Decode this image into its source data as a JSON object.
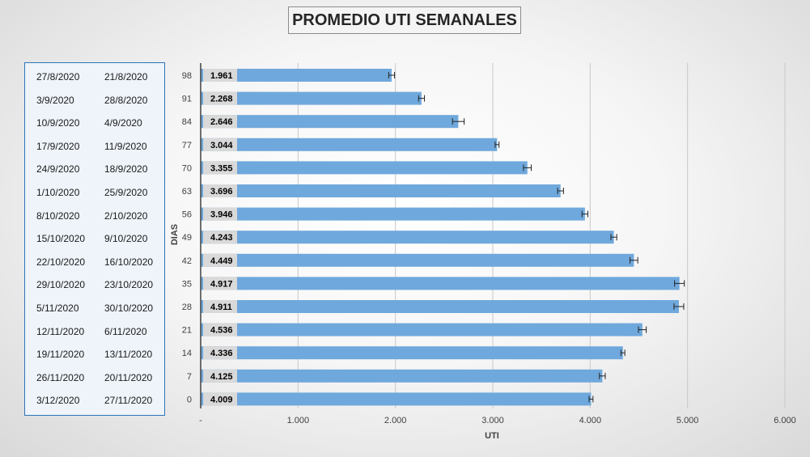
{
  "chart_data": {
    "type": "bar",
    "orientation": "horizontal",
    "title": "PROMEDIO UTI SEMANALES",
    "xlabel": "UTI",
    "ylabel": "DIAS",
    "categories": [
      "98",
      "91",
      "84",
      "77",
      "70",
      "63",
      "56",
      "49",
      "42",
      "35",
      "28",
      "21",
      "14",
      "7",
      "0"
    ],
    "values": [
      1961,
      2268,
      2646,
      3044,
      3355,
      3696,
      3946,
      4243,
      4449,
      4917,
      4911,
      4536,
      4336,
      4125,
      4009
    ],
    "value_labels": [
      "1.961",
      "2.268",
      "2.646",
      "3.044",
      "3.355",
      "3.696",
      "3.946",
      "4.243",
      "4.449",
      "4.917",
      "4.911",
      "4.536",
      "4.336",
      "4.125",
      "4.009"
    ],
    "error": [
      30,
      30,
      60,
      20,
      40,
      30,
      30,
      30,
      40,
      50,
      50,
      40,
      20,
      30,
      20
    ],
    "xlim": [
      0,
      6000
    ],
    "xticks": [
      0,
      1000,
      2000,
      3000,
      4000,
      5000,
      6000
    ],
    "xtick_labels": [
      "-",
      "1.000",
      "2.000",
      "3.000",
      "4.000",
      "5.000",
      "6.000"
    ],
    "grid": "vertical",
    "bar_color": "#6fa8dc",
    "label_bg_color": "#d9d9d9",
    "date_ranges": [
      [
        "27/8/2020",
        "21/8/2020"
      ],
      [
        "3/9/2020",
        "28/8/2020"
      ],
      [
        "10/9/2020",
        "4/9/2020"
      ],
      [
        "17/9/2020",
        "11/9/2020"
      ],
      [
        "24/9/2020",
        "18/9/2020"
      ],
      [
        "1/10/2020",
        "25/9/2020"
      ],
      [
        "8/10/2020",
        "2/10/2020"
      ],
      [
        "15/10/2020",
        "9/10/2020"
      ],
      [
        "22/10/2020",
        "16/10/2020"
      ],
      [
        "29/10/2020",
        "23/10/2020"
      ],
      [
        "5/11/2020",
        "30/10/2020"
      ],
      [
        "12/11/2020",
        "6/11/2020"
      ],
      [
        "19/11/2020",
        "13/11/2020"
      ],
      [
        "26/11/2020",
        "20/11/2020"
      ],
      [
        "3/12/2020",
        "27/11/2020"
      ]
    ]
  }
}
